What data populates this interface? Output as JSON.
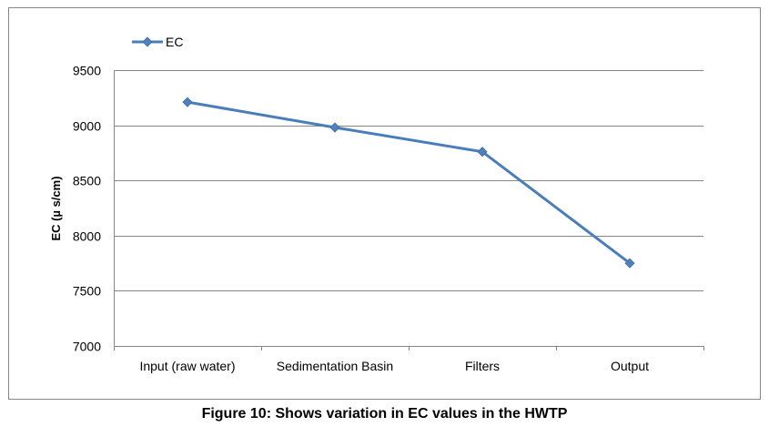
{
  "caption": "Figure 10: Shows variation in EC values in the HWTP",
  "colors": {
    "series": "#4a7ebb",
    "marker": "#4f81bd",
    "gridline": "#868686",
    "frame": "#868686"
  },
  "chart_data": {
    "type": "line",
    "title": "",
    "xlabel": "",
    "ylabel": "EC (µ s/cm)",
    "categories": [
      "Input (raw water)",
      "Sedimentation Basin",
      "Filters",
      "Output"
    ],
    "series": [
      {
        "name": "EC",
        "values": [
          9210,
          8980,
          8760,
          7750
        ]
      }
    ],
    "ylim": [
      7000,
      9500
    ],
    "yticks": [
      "7000",
      "7500",
      "8000",
      "8500",
      "9000",
      "9500"
    ],
    "grid": true,
    "legend": "top-left",
    "marker": "diamond"
  }
}
